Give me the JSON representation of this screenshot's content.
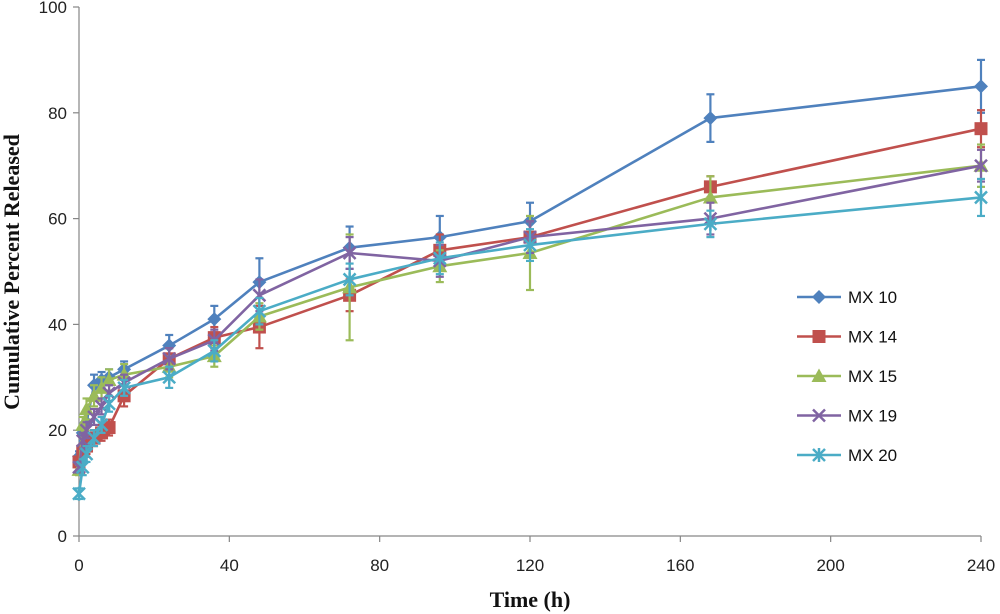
{
  "chart_data": {
    "type": "line",
    "xlabel": "Time (h)",
    "ylabel": "Cumulative Percent Released",
    "xlim": [
      0,
      240
    ],
    "ylim": [
      0,
      100
    ],
    "xticks": [
      0,
      40,
      80,
      120,
      160,
      200,
      240
    ],
    "yticks": [
      0,
      20,
      40,
      60,
      80,
      100
    ],
    "grid": false,
    "legend_position": "right",
    "x": [
      0,
      1,
      2,
      4,
      6,
      8,
      12,
      24,
      36,
      48,
      72,
      96,
      120,
      168,
      240
    ],
    "series": [
      {
        "name": "MX 10",
        "color": "#4F81BD",
        "marker": "diamond",
        "values": [
          15,
          19.5,
          21.5,
          28.5,
          29.5,
          30,
          31.5,
          36,
          41,
          48,
          54.5,
          56.5,
          59.5,
          79,
          85
        ],
        "errors": [
          1,
          1.5,
          2,
          2,
          1.5,
          1.5,
          1.5,
          2,
          2.5,
          4.5,
          4,
          4,
          3.5,
          4.5,
          5
        ]
      },
      {
        "name": "MX 14",
        "color": "#C0504D",
        "marker": "square",
        "values": [
          14,
          16,
          17,
          18.5,
          19.5,
          20.5,
          26.5,
          33.5,
          37.5,
          39.5,
          45.5,
          54,
          56.5,
          66,
          77
        ],
        "errors": [
          1,
          1,
          1.5,
          1.5,
          1.5,
          1.5,
          2,
          2,
          2,
          4,
          3,
          3,
          3,
          2,
          3.5
        ]
      },
      {
        "name": "MX 15",
        "color": "#9BBB59",
        "marker": "triangle",
        "values": [
          12.5,
          21,
          24,
          26.5,
          28,
          29.5,
          30.5,
          32,
          34,
          41.5,
          47,
          51,
          53.5,
          64,
          70
        ],
        "errors": [
          1,
          1.5,
          2,
          2,
          2,
          2,
          2,
          2,
          2,
          2.5,
          10,
          3,
          7,
          4,
          4
        ]
      },
      {
        "name": "MX 19",
        "color": "#8064A2",
        "marker": "x",
        "values": [
          13,
          18,
          20,
          22.5,
          24.5,
          27,
          29,
          33.5,
          37,
          45.5,
          53.5,
          52,
          56.5,
          60,
          70
        ],
        "errors": [
          1,
          1.5,
          1.5,
          1.5,
          1.5,
          1.5,
          1.5,
          2,
          2,
          3,
          3,
          3,
          3,
          3,
          3
        ]
      },
      {
        "name": "MX 20",
        "color": "#4BACC6",
        "marker": "star",
        "values": [
          8,
          13,
          15.5,
          18.5,
          21,
          25,
          28,
          30,
          35,
          42.5,
          48.5,
          52.5,
          55,
          59,
          64
        ],
        "errors": [
          1,
          1.5,
          1.5,
          1.5,
          1.5,
          1.5,
          1.5,
          2,
          2,
          2.5,
          3,
          3,
          3,
          2.5,
          3.5
        ]
      }
    ]
  }
}
